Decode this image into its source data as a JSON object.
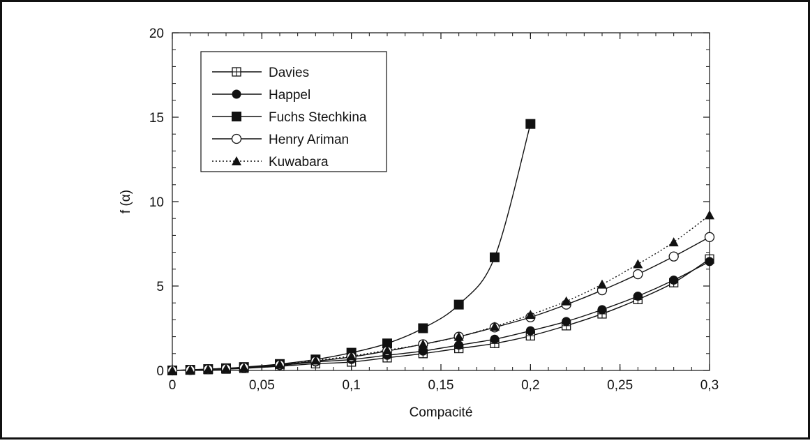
{
  "chart_data": {
    "type": "line",
    "title": "",
    "xlabel": "Compacité",
    "ylabel": "f (α)",
    "xlim": [
      0,
      0.3
    ],
    "ylim": [
      0,
      20
    ],
    "xticks": [
      {
        "value": 0,
        "label": "0"
      },
      {
        "value": 0.05,
        "label": "0,05"
      },
      {
        "value": 0.1,
        "label": "0,1"
      },
      {
        "value": 0.15,
        "label": "0,15"
      },
      {
        "value": 0.2,
        "label": "0,2"
      },
      {
        "value": 0.25,
        "label": "0,25"
      },
      {
        "value": 0.3,
        "label": "0,3"
      }
    ],
    "yticks": [
      {
        "value": 0,
        "label": "0"
      },
      {
        "value": 5,
        "label": "5"
      },
      {
        "value": 10,
        "label": "10"
      },
      {
        "value": 15,
        "label": "15"
      },
      {
        "value": 20,
        "label": "20"
      }
    ],
    "grid": false,
    "legend_position": "top-left",
    "series": [
      {
        "name": "Davies",
        "marker": "square-plus",
        "line": "solid",
        "color": "#111111",
        "x": [
          0,
          0.01,
          0.02,
          0.03,
          0.04,
          0.06,
          0.08,
          0.1,
          0.12,
          0.14,
          0.16,
          0.18,
          0.2,
          0.22,
          0.24,
          0.26,
          0.28,
          0.3
        ],
        "y": [
          0,
          0.02,
          0.05,
          0.08,
          0.12,
          0.25,
          0.4,
          0.5,
          0.75,
          1.0,
          1.3,
          1.6,
          2.05,
          2.65,
          3.35,
          4.2,
          5.2,
          6.6
        ]
      },
      {
        "name": "Happel",
        "marker": "circle-filled",
        "line": "solid",
        "color": "#111111",
        "x": [
          0,
          0.01,
          0.02,
          0.03,
          0.04,
          0.06,
          0.08,
          0.1,
          0.12,
          0.14,
          0.16,
          0.18,
          0.2,
          0.22,
          0.24,
          0.26,
          0.28,
          0.3
        ],
        "y": [
          0,
          0.03,
          0.06,
          0.1,
          0.15,
          0.3,
          0.5,
          0.65,
          0.9,
          1.15,
          1.5,
          1.85,
          2.35,
          2.9,
          3.6,
          4.4,
          5.35,
          6.45
        ]
      },
      {
        "name": "Fuchs Stechkina",
        "marker": "square-filled",
        "line": "solid",
        "color": "#111111",
        "x": [
          0,
          0.01,
          0.02,
          0.03,
          0.04,
          0.06,
          0.08,
          0.1,
          0.12,
          0.14,
          0.16,
          0.18,
          0.2
        ],
        "y": [
          0,
          0.04,
          0.08,
          0.13,
          0.2,
          0.38,
          0.65,
          1.05,
          1.6,
          2.5,
          3.9,
          6.7,
          14.6
        ]
      },
      {
        "name": "Henry Ariman",
        "marker": "circle-open",
        "line": "solid",
        "color": "#111111",
        "x": [
          0,
          0.01,
          0.02,
          0.03,
          0.04,
          0.06,
          0.08,
          0.1,
          0.12,
          0.14,
          0.16,
          0.18,
          0.2,
          0.22,
          0.24,
          0.26,
          0.28,
          0.3
        ],
        "y": [
          0,
          0.03,
          0.07,
          0.11,
          0.17,
          0.33,
          0.55,
          0.8,
          1.15,
          1.55,
          2.0,
          2.55,
          3.15,
          3.9,
          4.75,
          5.7,
          6.75,
          7.9
        ]
      },
      {
        "name": "Kuwabara",
        "marker": "triangle-filled",
        "line": "dotted",
        "color": "#111111",
        "x": [
          0,
          0.01,
          0.02,
          0.03,
          0.04,
          0.06,
          0.08,
          0.1,
          0.12,
          0.14,
          0.16,
          0.18,
          0.2,
          0.22,
          0.24,
          0.26,
          0.28,
          0.3
        ],
        "y": [
          0,
          0.03,
          0.07,
          0.11,
          0.17,
          0.35,
          0.6,
          0.85,
          1.2,
          1.55,
          2.0,
          2.6,
          3.3,
          4.1,
          5.1,
          6.3,
          7.6,
          9.2
        ]
      }
    ]
  }
}
